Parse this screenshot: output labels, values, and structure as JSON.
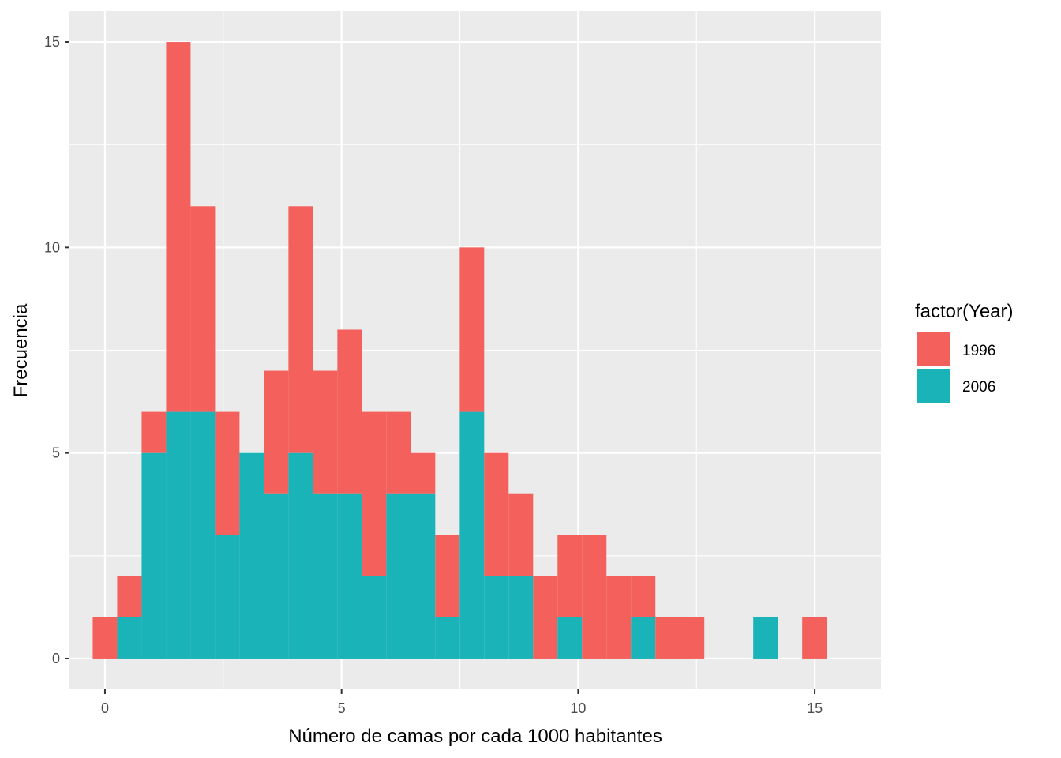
{
  "chart_data": {
    "type": "bar",
    "subtype": "stacked-histogram",
    "title": "",
    "xlabel": "Número de camas por cada 1000 habitantes",
    "ylabel": "Frecuencia",
    "xlim": [
      -0.75,
      16.4
    ],
    "ylim": [
      -0.75,
      15.75
    ],
    "x_ticks": [
      0,
      5,
      10,
      15
    ],
    "y_ticks": [
      0,
      5,
      10,
      15
    ],
    "x_tick_labels": [
      "0",
      "5",
      "10",
      "15"
    ],
    "y_tick_labels": [
      "0",
      "5",
      "10",
      "15"
    ],
    "grid": true,
    "legend": {
      "title": "factor(Year)",
      "position": "right"
    },
    "bin_width": 0.517,
    "bin_centers": [
      0.0,
      0.517,
      1.034,
      1.551,
      2.068,
      2.585,
      3.102,
      3.619,
      4.136,
      4.653,
      5.17,
      5.687,
      6.204,
      6.721,
      7.238,
      7.755,
      8.272,
      8.789,
      9.306,
      9.823,
      10.34,
      10.857,
      11.374,
      11.891,
      12.408,
      12.925,
      13.442,
      13.959,
      14.476,
      14.993
    ],
    "series": [
      {
        "name": "2006",
        "color": "#19B3B8",
        "values": [
          0,
          1,
          5,
          6,
          6,
          3,
          5,
          4,
          5,
          4,
          4,
          2,
          4,
          4,
          1,
          6,
          2,
          2,
          0,
          1,
          0,
          0,
          1,
          0,
          0,
          0,
          0,
          1,
          0,
          0
        ]
      },
      {
        "name": "1996",
        "color": "#F4615D",
        "values": [
          1,
          1,
          1,
          9,
          5,
          3,
          0,
          3,
          6,
          3,
          4,
          4,
          2,
          1,
          2,
          4,
          3,
          2,
          2,
          2,
          3,
          2,
          1,
          1,
          1,
          0,
          0,
          0,
          0,
          1
        ]
      }
    ],
    "totals": [
      1,
      2,
      6,
      15,
      11,
      6,
      5,
      7,
      11,
      7,
      8,
      6,
      6,
      5,
      3,
      10,
      5,
      4,
      2,
      3,
      3,
      2,
      2,
      1,
      1,
      0,
      0,
      1,
      0,
      1
    ],
    "legend_order": [
      "1996",
      "2006"
    ]
  }
}
